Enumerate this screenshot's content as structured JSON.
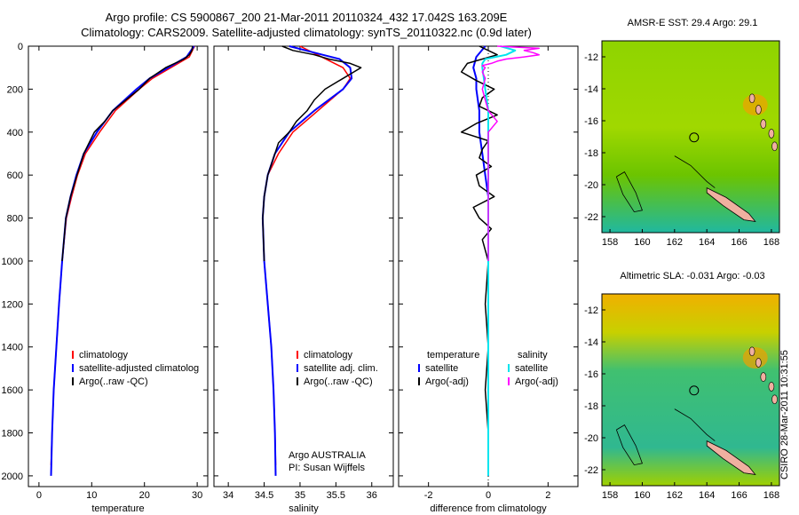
{
  "header": {
    "line1": "Argo profile: CS 5900867_200 21-Mar-2011 20110324_432 17.042S 163.209E",
    "line2": "Climatology: CARS2009. Satellite-adjusted climatology: synTS_20110322.nc (0.9d later)"
  },
  "maps": {
    "sst_title": "AMSR-E SST: 29.4 Argo: 29.1",
    "sla_title": "Altimetric SLA: -0.031 Argo: -0.03",
    "stamp": "CSIRO 28-Mar-2011 10:31:55"
  },
  "colors": {
    "clim": "#ff0000",
    "sat": "#0000ff",
    "argo": "#000000",
    "sat_sal": "#00e5ee",
    "argo_sal": "#ff00ff"
  },
  "chart_data": [
    {
      "type": "line",
      "xlabel": "temperature",
      "ylabel": "",
      "xlim": [
        -2,
        32
      ],
      "ylim": [
        2050,
        0
      ],
      "xticks": [
        0,
        10,
        20,
        30
      ],
      "yticks": [
        0,
        200,
        400,
        600,
        800,
        1000,
        1200,
        1400,
        1600,
        1800,
        2000
      ],
      "legend": [
        "climatology",
        "satellite-adjusted climatolog",
        "Argo(..raw -QC)"
      ],
      "series": [
        {
          "name": "climatology",
          "depth": [
            0,
            50,
            100,
            150,
            200,
            300,
            400,
            500,
            600,
            700,
            800,
            1000,
            1200,
            1400,
            1600,
            1800,
            1950
          ],
          "values": [
            29.5,
            28.5,
            25,
            21.5,
            19,
            14.5,
            11.5,
            8.8,
            7.3,
            6.2,
            5.2,
            4.4,
            3.8,
            3.3,
            2.8,
            2.5,
            2.3
          ]
        },
        {
          "name": "satellite-adjusted climatolog",
          "depth": [
            0,
            50,
            100,
            150,
            200,
            300,
            400,
            500,
            600,
            700,
            800,
            1000,
            1200,
            1400,
            1600,
            1800,
            2000
          ],
          "values": [
            29.4,
            28,
            24.5,
            21,
            18.5,
            14,
            11,
            8.5,
            7.1,
            6,
            5.1,
            4.4,
            3.8,
            3.3,
            2.8,
            2.5,
            2.3
          ]
        },
        {
          "name": "Argo(..raw -QC)",
          "depth": [
            0,
            20,
            40,
            60,
            100,
            150,
            200,
            250,
            300,
            350,
            400,
            450,
            500,
            600,
            700,
            800,
            1000
          ],
          "values": [
            29.1,
            29,
            28.5,
            27.5,
            24,
            21,
            19,
            16.5,
            14,
            12.5,
            10.5,
            9.5,
            8.5,
            7.2,
            6,
            5.1,
            4.4
          ]
        }
      ]
    },
    {
      "type": "line",
      "xlabel": "salinity",
      "ylabel": "",
      "xlim": [
        33.8,
        36.3
      ],
      "ylim": [
        2050,
        0
      ],
      "xticks": [
        34,
        34.5,
        35,
        35.5,
        36
      ],
      "yticks": [
        0,
        200,
        400,
        600,
        800,
        1000,
        1200,
        1400,
        1600,
        1800,
        2000
      ],
      "legend": [
        "climatology",
        "satellite adj. clim.",
        "Argo(..raw -QC)"
      ],
      "annotation": [
        "Argo AUSTRALIA",
        "PI: Susan Wijffels"
      ],
      "series": [
        {
          "name": "climatology",
          "depth": [
            0,
            50,
            100,
            150,
            200,
            300,
            400,
            500,
            600,
            700,
            800,
            1000,
            1200,
            1400,
            1600,
            1800,
            1950
          ],
          "values": [
            35.0,
            35.3,
            35.6,
            35.7,
            35.6,
            35.25,
            34.9,
            34.7,
            34.55,
            34.5,
            34.48,
            34.5,
            34.55,
            34.6,
            34.63,
            34.65,
            34.66
          ]
        },
        {
          "name": "satellite adj. clim.",
          "depth": [
            0,
            30,
            60,
            100,
            150,
            200,
            300,
            400,
            500,
            600,
            700,
            800,
            1000,
            1200,
            1400,
            1600,
            1800,
            2000
          ],
          "values": [
            34.85,
            35.2,
            35.55,
            35.7,
            35.72,
            35.6,
            35.2,
            34.85,
            34.65,
            34.55,
            34.5,
            34.48,
            34.5,
            34.55,
            34.6,
            34.63,
            34.65,
            34.66
          ]
        },
        {
          "name": "Argo(..raw -QC)",
          "depth": [
            0,
            20,
            40,
            60,
            80,
            100,
            120,
            150,
            200,
            250,
            300,
            350,
            400,
            450,
            500,
            600,
            700,
            800,
            1000
          ],
          "values": [
            34.75,
            34.9,
            35.2,
            35.4,
            35.7,
            35.85,
            35.75,
            35.6,
            35.35,
            35.2,
            35.1,
            34.95,
            34.85,
            34.7,
            34.65,
            34.55,
            34.5,
            34.48,
            34.5
          ]
        }
      ]
    },
    {
      "type": "line",
      "xlabel": "difference from climatology",
      "ylabel": "",
      "xlim": [
        -3,
        3
      ],
      "ylim": [
        2050,
        0
      ],
      "xticks": [
        -2,
        0,
        2
      ],
      "yticks": [
        0,
        200,
        400,
        600,
        800,
        1000,
        1200,
        1400,
        1600,
        1800,
        2000
      ],
      "legend_temperature": [
        "temperature",
        "satellite",
        "Argo(-adj)"
      ],
      "legend_salinity": [
        "salinity",
        "satellite",
        "Argo(-adj)"
      ],
      "series": [
        {
          "name": "temperature satellite",
          "depth": [
            0,
            50,
            100,
            150,
            200,
            300,
            400,
            500,
            600,
            700,
            800,
            1000,
            1500,
            2000
          ],
          "values": [
            -0.1,
            -0.4,
            -0.5,
            -0.4,
            -0.4,
            -0.3,
            -0.3,
            -0.2,
            -0.1,
            0,
            0,
            0,
            0,
            0
          ]
        },
        {
          "name": "temperature Argo(-adj)",
          "depth": [
            0,
            40,
            80,
            120,
            160,
            200,
            240,
            280,
            320,
            360,
            400,
            440,
            480,
            520,
            560,
            600,
            650,
            700,
            750,
            800,
            850,
            900,
            1000,
            1200,
            1400,
            1600,
            1800
          ],
          "values": [
            -0.3,
            0.3,
            -0.7,
            -0.9,
            -0.4,
            0.2,
            -0.2,
            -0.3,
            0.3,
            -0.4,
            -0.9,
            0.0,
            -0.2,
            -0.3,
            0.1,
            -0.4,
            -0.3,
            0.2,
            -0.5,
            -0.3,
            0.1,
            -0.2,
            0,
            -0.1,
            0,
            -0.1,
            0
          ]
        },
        {
          "name": "salinity satellite",
          "depth": [
            0,
            20,
            40,
            60,
            80,
            100,
            150,
            200,
            300,
            400,
            500,
            600,
            800,
            1000,
            1500,
            2000
          ],
          "values": [
            0.4,
            0.9,
            0.6,
            -0.1,
            -0.2,
            -0.2,
            -0.15,
            -0.1,
            0.0,
            0.0,
            0.0,
            0.0,
            0.0,
            0.0,
            0.0,
            0.0
          ]
        },
        {
          "name": "salinity Argo(-adj)",
          "depth": [
            0,
            10,
            20,
            30,
            40,
            50,
            60,
            70,
            80,
            90,
            100,
            120,
            150,
            200,
            250,
            300,
            350,
            400,
            450,
            500,
            600,
            800,
            1000
          ],
          "values": [
            0.3,
            1.7,
            1.2,
            1.5,
            1.7,
            1.2,
            0.6,
            0.3,
            0.1,
            -0.2,
            -0.1,
            -0.2,
            -0.1,
            -0.2,
            -0.1,
            0.0,
            0.3,
            0.0,
            0.0,
            0.0,
            0.0,
            0.0,
            0.0
          ]
        }
      ]
    }
  ],
  "map_axes": {
    "xticks": [
      158,
      160,
      162,
      164,
      166,
      168
    ],
    "yticks": [
      -12,
      -14,
      -16,
      -18,
      -20,
      -22
    ]
  }
}
